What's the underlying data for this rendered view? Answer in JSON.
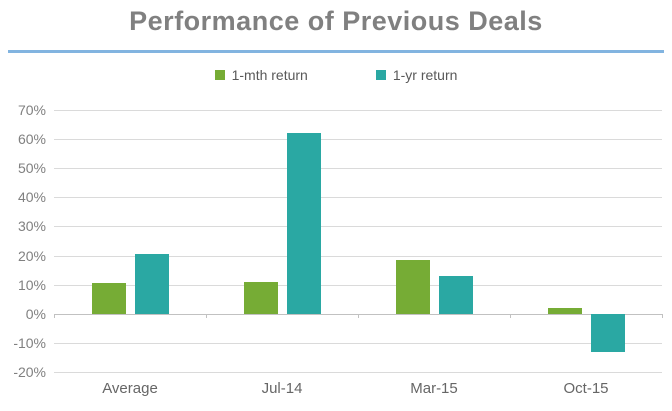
{
  "title": "Performance of Previous Deals",
  "colors": {
    "title_text": "#808080",
    "title_rule_blue": "#82b4e0",
    "gridline": "#dadada",
    "zero_axis": "#c1c1c1",
    "ytick_text": "#808080",
    "xtick_text": "#666666",
    "legend_text": "#595959"
  },
  "chart_data": {
    "type": "bar",
    "title": "Performance of Previous Deals",
    "categories": [
      "Average",
      "Jul-14",
      "Mar-15",
      "Oct-15"
    ],
    "series": [
      {
        "name": "1-mth return",
        "color": "#76ac35",
        "values": [
          10.5,
          11,
          18.5,
          2
        ]
      },
      {
        "name": "1-yr return",
        "color": "#2aa8a3",
        "values": [
          20.5,
          62,
          13,
          -13
        ]
      }
    ],
    "ylabel": "",
    "xlabel": "",
    "ylim": [
      -20,
      70
    ],
    "ytick_step": 10,
    "ytick_labels": [
      "70%",
      "60%",
      "50%",
      "40%",
      "30%",
      "20%",
      "10%",
      "0%",
      "-10%",
      "-20%"
    ],
    "grid": true,
    "legend_position": "top-center"
  }
}
